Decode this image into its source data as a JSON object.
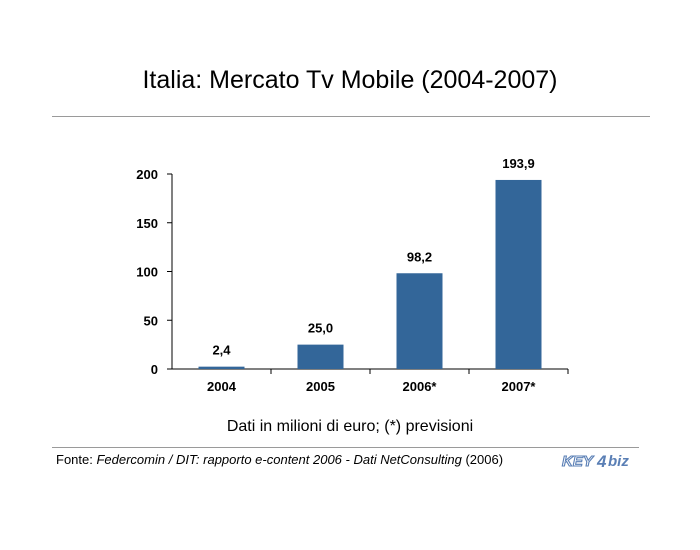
{
  "header": {
    "title": "Italia: Mercato Tv Mobile (2004-2007)"
  },
  "chart_data": {
    "type": "bar",
    "title": "Italia: Mercato Tv Mobile (2004-2007)",
    "categories": [
      "2004",
      "2005",
      "2006*",
      "2007*"
    ],
    "values": [
      2.4,
      25.0,
      98.2,
      193.9
    ],
    "value_labels": [
      "2,4",
      "25,0",
      "98,2",
      "193,9"
    ],
    "ylim": [
      0,
      200
    ],
    "yticks": [
      0,
      50,
      100,
      150,
      200
    ],
    "xlabel": "",
    "ylabel": "",
    "grid": false,
    "bar_color": "#336699"
  },
  "caption": "Dati in milioni di euro; (*) previsioni",
  "footer": {
    "prefix": "Fonte: ",
    "source": "Federcomin / DIT: rapporto e-content 2006 - Dati NetConsulting",
    "suffix": " (2006)"
  },
  "logo": {
    "text_a": "KEY",
    "text_b": "4",
    "text_c": "biz",
    "color": "#5a7fb5"
  }
}
